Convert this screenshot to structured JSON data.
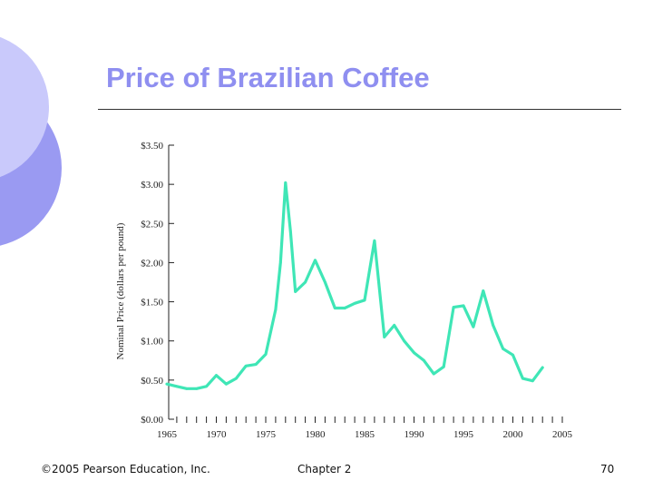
{
  "slide": {
    "title": "Price of Brazilian Coffee",
    "footer_left": "©2005 Pearson Education, Inc.",
    "footer_center": "Chapter 2",
    "footer_right": "70",
    "theme": {
      "title_color": "#8f8ff0",
      "deco_light": "#c9c9fb",
      "deco_dark": "#9a9af2"
    }
  },
  "chart_data": {
    "type": "line",
    "title": "",
    "xlabel": "",
    "ylabel": "Nominal Price (dollars per pound)",
    "xlim": [
      1965,
      2005
    ],
    "ylim": [
      0,
      3.5
    ],
    "x_ticks": [
      1965,
      1970,
      1975,
      1980,
      1985,
      1990,
      1995,
      2000,
      2005
    ],
    "y_ticks": [
      "$0.00",
      "$0.50",
      "$1.00",
      "$1.50",
      "$2.00",
      "$2.50",
      "$3.00",
      "$3.50"
    ],
    "y_tick_values": [
      0,
      0.5,
      1,
      1.5,
      2,
      2.5,
      3,
      3.5
    ],
    "grid": false,
    "series": [
      {
        "color": "#3fe6b6",
        "x": [
          1965,
          1966,
          1967,
          1968,
          1969,
          1970,
          1971,
          1972,
          1973,
          1974,
          1975,
          1976,
          1976.5,
          1977,
          1977.5,
          1978,
          1979,
          1980,
          1981,
          1982,
          1983,
          1984,
          1985,
          1986,
          1987,
          1988,
          1989,
          1990,
          1991,
          1992,
          1993,
          1994,
          1995,
          1996,
          1997,
          1998,
          1999,
          2000,
          2001,
          2002,
          2003
        ],
        "y": [
          0.45,
          0.42,
          0.39,
          0.39,
          0.42,
          0.56,
          0.45,
          0.52,
          0.68,
          0.7,
          0.83,
          1.4,
          2.0,
          3.02,
          2.4,
          1.63,
          1.75,
          2.03,
          1.75,
          1.42,
          1.42,
          1.48,
          1.52,
          2.28,
          1.05,
          1.2,
          1.0,
          0.85,
          0.75,
          0.58,
          0.67,
          1.43,
          1.45,
          1.18,
          1.64,
          1.2,
          0.9,
          0.82,
          0.52,
          0.49,
          0.66
        ]
      }
    ]
  }
}
